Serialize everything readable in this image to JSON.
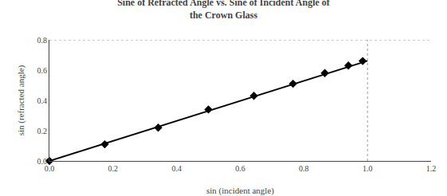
{
  "chart_data": {
    "type": "scatter",
    "title": "Sine of Refracted Angle vs. Sine of Incident Angle of\nthe Crown Glass",
    "x_label": "sin (incident angle)",
    "y_label": "sin (refracted angle)",
    "xlim": [
      0.0,
      1.2
    ],
    "ylim": [
      0.0,
      0.8
    ],
    "xticks": [
      {
        "value": 0.0,
        "label": "0.0"
      },
      0.2,
      0.4,
      0.6,
      0.8,
      {
        "value": 1.0,
        "label": "1.0"
      },
      1.2
    ],
    "yticks": [
      {
        "value": 0.0,
        "label": "0.0"
      },
      0.2,
      0.4,
      0.6,
      0.8
    ],
    "grid": false,
    "series": [
      {
        "type": "line",
        "color": "#999999",
        "line_style": "dotted",
        "x": [
          0.0,
          1.2
        ],
        "values": [
          0.8,
          0.8
        ]
      },
      {
        "type": "line",
        "color": "#999999",
        "line_style": "dotted",
        "x": [
          1.0,
          1.0
        ],
        "values": [
          0.0,
          0.8
        ]
      },
      {
        "type": "line",
        "color": "#000000",
        "line_style": "solid",
        "x": [
          0.0,
          1.0
        ],
        "values": [
          0.0,
          0.661
        ]
      },
      {
        "type": "scatter",
        "color": "#000000",
        "marker": "diamond",
        "x": [
          0.0,
          0.174,
          0.342,
          0.5,
          0.643,
          0.766,
          0.866,
          0.94,
          0.985
        ],
        "values": [
          0.0,
          0.11,
          0.22,
          0.34,
          0.43,
          0.51,
          0.58,
          0.63,
          0.66
        ]
      }
    ]
  }
}
